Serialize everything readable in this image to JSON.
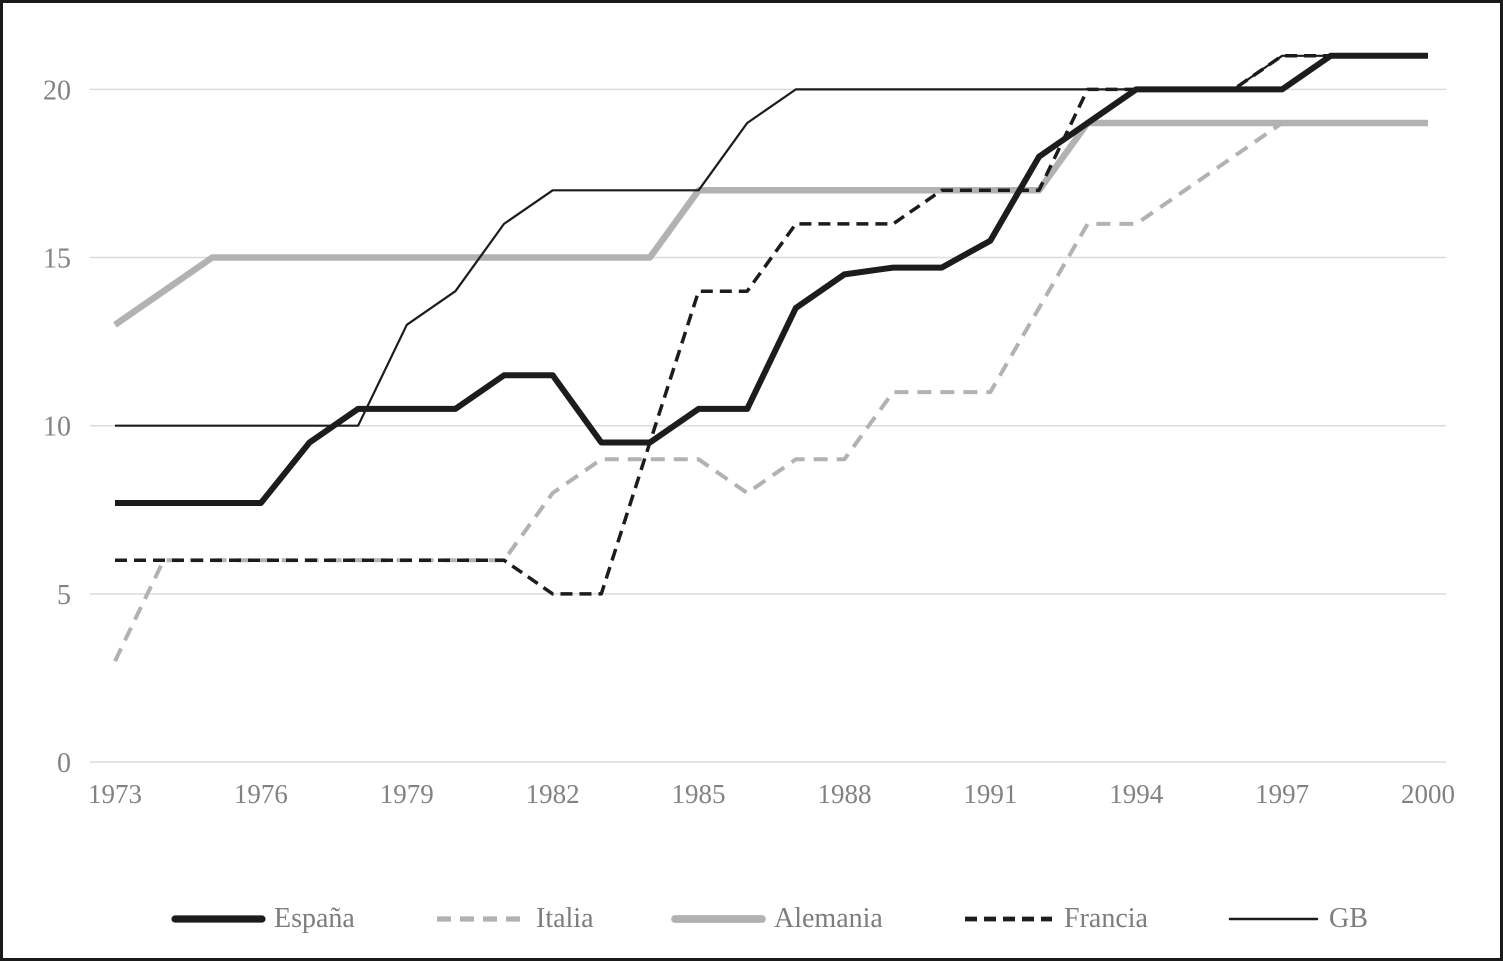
{
  "chart_data": {
    "type": "line",
    "title": "",
    "xlabel": "",
    "ylabel": "",
    "x_range": [
      1973,
      2000
    ],
    "ylim": [
      0,
      21.5
    ],
    "grid": "horizontal-only",
    "legend_position": "bottom-center",
    "gridline_color": "#dcdcdc",
    "axis_label_color": "#828282",
    "yticks": [
      "0",
      "5",
      "10",
      "15",
      "20"
    ],
    "ytick_values": [
      0,
      5,
      10,
      15,
      20
    ],
    "xticks": [
      "1973",
      "1976",
      "1979",
      "1982",
      "1985",
      "1988",
      "1991",
      "1994",
      "1997",
      "2000"
    ],
    "xtick_values": [
      1973,
      1976,
      1979,
      1982,
      1985,
      1988,
      1991,
      1994,
      1997,
      2000
    ],
    "years": [
      1973,
      1974,
      1975,
      1976,
      1977,
      1978,
      1979,
      1980,
      1981,
      1982,
      1983,
      1984,
      1985,
      1986,
      1987,
      1988,
      1989,
      1990,
      1991,
      1992,
      1993,
      1994,
      1995,
      1996,
      1997,
      1998,
      1999,
      2000
    ],
    "draw_order": [
      1,
      2,
      4,
      3,
      0
    ],
    "series": [
      {
        "name": "España",
        "color": "#1c1c1c",
        "width": 6,
        "dash": null,
        "values": [
          7.7,
          7.7,
          7.7,
          7.7,
          9.5,
          10.5,
          10.5,
          10.5,
          11.5,
          11.5,
          9.5,
          9.5,
          10.5,
          10.5,
          13.5,
          14.5,
          14.7,
          14.7,
          15.5,
          18,
          19,
          20,
          20,
          20,
          20,
          21,
          21,
          21
        ]
      },
      {
        "name": "Italia",
        "color": "#b2b2b2",
        "width": 4,
        "dash": "14 9",
        "values": [
          3,
          6,
          6,
          6,
          6,
          6,
          6,
          6,
          6,
          8,
          9,
          9,
          9,
          8,
          9,
          9,
          11,
          11,
          11,
          13.5,
          16,
          16,
          17,
          18,
          19,
          19,
          19,
          19
        ]
      },
      {
        "name": "Alemania",
        "color": "#b2b2b2",
        "width": 6.5,
        "dash": null,
        "values": [
          13,
          14,
          15,
          15,
          15,
          15,
          15,
          15,
          15,
          15,
          15,
          15,
          17,
          17,
          17,
          17,
          17,
          17,
          17,
          17,
          19,
          19,
          19,
          19,
          19,
          19,
          19,
          19
        ]
      },
      {
        "name": "Francia",
        "color": "#1c1c1c",
        "width": 3.5,
        "dash": "12 7",
        "values": [
          6,
          6,
          6,
          6,
          6,
          6,
          6,
          6,
          6,
          5,
          5,
          9.5,
          14,
          14,
          16,
          16,
          16,
          17,
          17,
          17,
          20,
          20,
          20,
          20,
          21,
          21,
          21,
          21
        ]
      },
      {
        "name": "GB",
        "color": "#1c1c1c",
        "width": 2.2,
        "dash": null,
        "values": [
          10,
          10,
          10,
          10,
          10,
          10,
          13,
          14,
          16,
          17,
          17,
          17,
          17,
          19,
          20,
          20,
          20,
          20,
          20,
          20,
          20,
          20,
          20,
          20,
          21,
          21,
          21,
          21
        ]
      }
    ],
    "legend_x_positions": [
      168,
      430,
      668,
      958,
      1223
    ]
  }
}
